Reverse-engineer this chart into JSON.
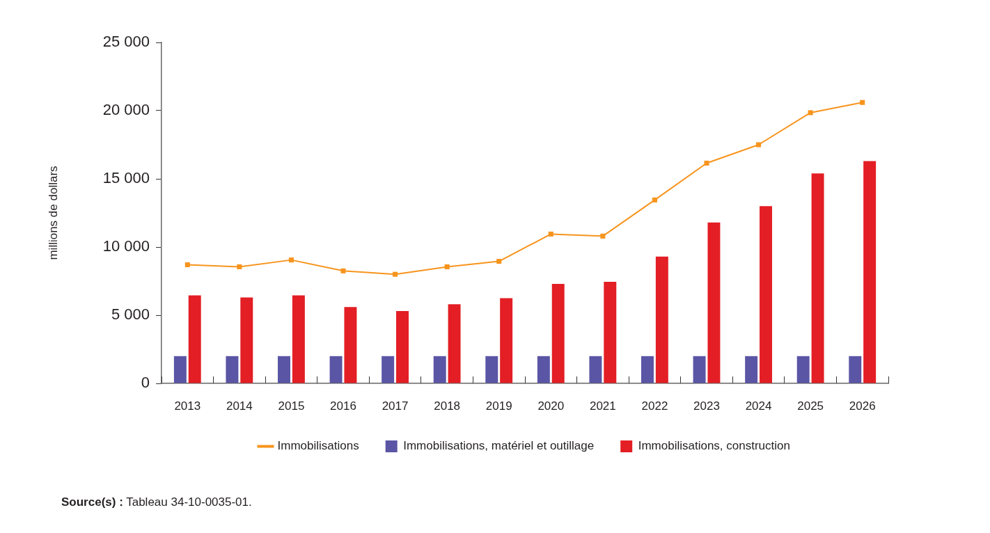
{
  "chart_data": {
    "type": "bar",
    "ylabel": "millions de dollars",
    "categories": [
      "2013",
      "2014",
      "2015",
      "2016",
      "2017",
      "2018",
      "2019",
      "2020",
      "2021",
      "2022",
      "2023",
      "2024",
      "2025",
      "2026"
    ],
    "series": [
      {
        "name": "Immobilisations",
        "type": "line",
        "color": "#f7941d",
        "values": [
          8700,
          8550,
          9050,
          8250,
          8000,
          8550,
          8950,
          10950,
          10800,
          13450,
          16150,
          17500,
          19850,
          20600
        ]
      },
      {
        "name": "Immobilisations, matériel et outillage",
        "color": "#5b55a5",
        "values": [
          2000,
          2000,
          2000,
          2000,
          2000,
          2000,
          2000,
          2000,
          2000,
          2000,
          2000,
          2000,
          2000,
          2000
        ]
      },
      {
        "name": "Immobilisations, construction",
        "color": "#e31e24",
        "values": [
          6450,
          6300,
          6450,
          5600,
          5300,
          5800,
          6250,
          7300,
          7450,
          9300,
          11800,
          13000,
          15400,
          16300
        ]
      }
    ],
    "ylim": [
      0,
      25000
    ],
    "yticks": [
      0,
      {
        "value": 5000,
        "label": "5 000"
      },
      {
        "value": 10000,
        "label": "10 000"
      },
      {
        "value": 15000,
        "label": "15 000"
      },
      {
        "value": 20000,
        "label": "20 000"
      },
      {
        "value": 25000,
        "label": "25 000"
      }
    ],
    "legend": "bottom",
    "marker": "square",
    "annotations": [
      "Source(s) : Tableau 34-10-0035-01."
    ]
  }
}
